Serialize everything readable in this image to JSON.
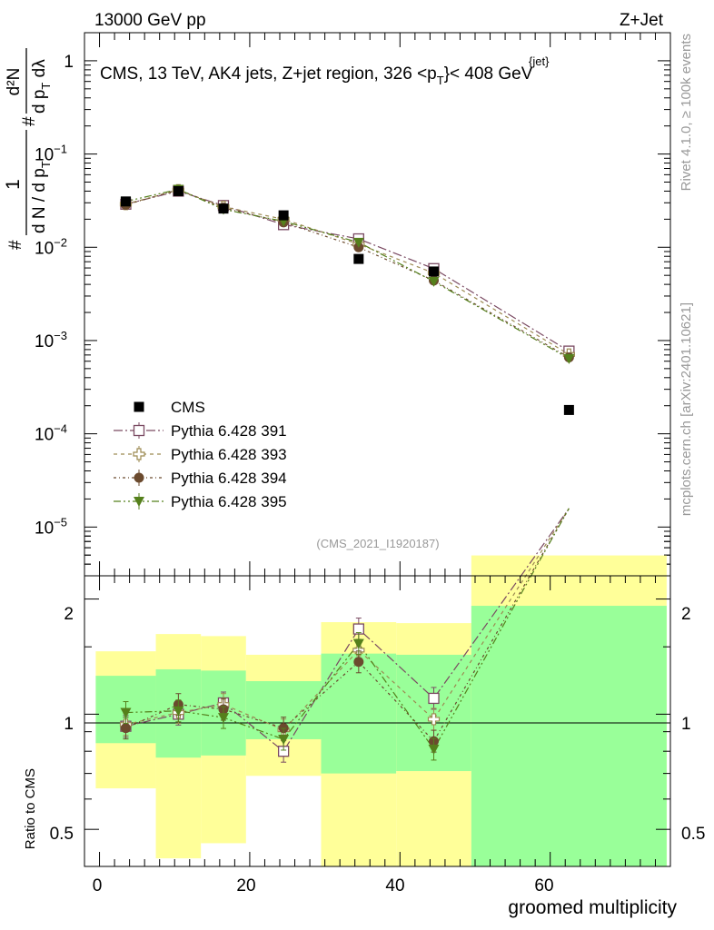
{
  "header": {
    "left": "13000 GeV pp",
    "right": "Z+Jet"
  },
  "side": {
    "rivet": "Rivet 4.1.0, ≥ 100k events",
    "mcplots": "mcplots.cern.ch [arXiv:2401.10621]"
  },
  "main": {
    "title_main": "CMS, 13 TeV, AK4 jets, Z+jet region, 326 <p",
    "title_sup": "{jet}",
    "title_sub": "T",
    "title_end": "}< 408 GeV",
    "analysis_id": "(CMS_2021_I1920187)",
    "ylabel": {
      "num1": "1",
      "den1": "d N / d p",
      "den1_sub": "T",
      "num2": "d²N",
      "den2": "d p",
      "den2_sub": "T",
      "den2_end": " dλ",
      "hash": "#"
    },
    "yticks": [
      {
        "v": 1,
        "label": "1"
      },
      {
        "v": 0.1,
        "label": "10",
        "exp": "−1"
      },
      {
        "v": 0.01,
        "label": "10",
        "exp": "−2"
      },
      {
        "v": 0.001,
        "label": "10",
        "exp": "−3"
      },
      {
        "v": 0.0001,
        "label": "10",
        "exp": "−4"
      },
      {
        "v": 1e-05,
        "label": "10",
        "exp": "−5"
      }
    ]
  },
  "ratio": {
    "ylabel": "Ratio to CMS",
    "yticks_left": [
      "2",
      "1",
      "0.5"
    ],
    "yticks_right": [
      "2",
      "1",
      "0.5"
    ]
  },
  "xaxis": {
    "label": "groomed multiplicity",
    "ticks": [
      "0",
      "20",
      "40",
      "60"
    ]
  },
  "chart_data": {
    "type": "scatter",
    "title": "CMS, 13 TeV, AK4 jets, Z+jet region, 326 <p_T^{jet}< 408 GeV",
    "xlabel": "groomed multiplicity",
    "ylabel": "1/(dN/dp_T) d²N/(dp_T dλ)",
    "ratio_ylabel": "Ratio to CMS",
    "xlim": [
      -2,
      76
    ],
    "ylim_main": [
      3e-06,
      2
    ],
    "ylim_ratio": [
      0.4,
      2.3
    ],
    "bins": [
      [
        -0.5,
        7.5
      ],
      [
        7.5,
        13.5
      ],
      [
        13.5,
        19.5
      ],
      [
        19.5,
        29.5
      ],
      [
        29.5,
        39.5
      ],
      [
        39.5,
        49.5
      ],
      [
        49.5,
        75.5
      ]
    ],
    "x": [
      3.5,
      10.5,
      16.5,
      24.5,
      34.5,
      44.5,
      62.5
    ],
    "data": {
      "name": "CMS",
      "values": [
        0.031,
        0.04,
        0.026,
        0.022,
        0.0075,
        0.0055,
        0.00018
      ],
      "band_inner": [
        [
          0.84,
          1.26
        ],
        [
          0.77,
          1.31
        ],
        [
          0.78,
          1.3
        ],
        [
          0.86,
          1.22
        ],
        [
          0.7,
          1.44
        ],
        [
          0.71,
          1.43
        ],
        [
          0.38,
          1.92
        ]
      ],
      "band_outer": [
        [
          0.64,
          1.46
        ],
        [
          0.42,
          1.62
        ],
        [
          0.46,
          1.6
        ],
        [
          0.69,
          1.43
        ],
        [
          0.33,
          1.74
        ],
        [
          0.34,
          1.73
        ],
        [
          0.3,
          2.6
        ]
      ]
    },
    "series": [
      {
        "name": "Pythia 6.428 391",
        "color": "#7a4a62",
        "marker": "open-square",
        "values": [
          0.029,
          0.04,
          0.028,
          0.0175,
          0.0123,
          0.0059,
          0.00077
        ],
        "ratio": [
          0.93,
          1.0,
          1.07,
          0.8,
          1.67,
          1.1,
          4.3
        ]
      },
      {
        "name": "Pythia 6.428 393",
        "color": "#9c8a52",
        "marker": "open-cross",
        "values": [
          0.029,
          0.041,
          0.0272,
          0.02,
          0.0108,
          0.0053,
          0.00071
        ],
        "ratio": [
          0.94,
          1.01,
          1.06,
          0.91,
          1.47,
          0.97,
          3.95
        ]
      },
      {
        "name": "Pythia 6.428 394",
        "color": "#6b4a2e",
        "marker": "filled-circle",
        "values": [
          0.0285,
          0.0415,
          0.0265,
          0.0185,
          0.01,
          0.0044,
          0.00066
        ],
        "ratio": [
          0.92,
          1.06,
          1.03,
          0.92,
          1.37,
          0.85,
          3.7
        ]
      },
      {
        "name": "Pythia 6.428 395",
        "color": "#55801c",
        "marker": "filled-triangle-down",
        "values": [
          0.031,
          0.0418,
          0.0255,
          0.019,
          0.0113,
          0.0043,
          0.00064
        ],
        "ratio": [
          1.01,
          1.02,
          0.98,
          0.86,
          1.53,
          0.81,
          3.55
        ]
      }
    ],
    "colors": {
      "band_inner": "#99ff99",
      "band_outer": "#ffff99",
      "data": "#000000",
      "side_text": "#999999",
      "analysis_id": "#999999"
    }
  }
}
